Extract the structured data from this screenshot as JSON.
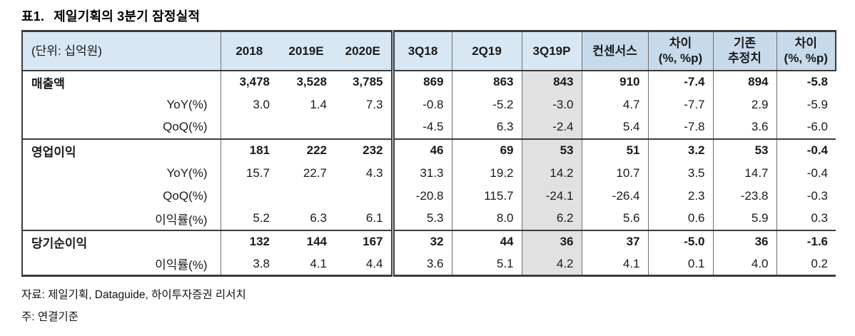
{
  "title": {
    "prefix": "표1.",
    "text": "제일기획의 3분기 잠정실적"
  },
  "table": {
    "unit_label": "(단위: 십억원)",
    "highlighted_column": "3Q19P",
    "columns": [
      {
        "id": "2018",
        "label": "2018"
      },
      {
        "id": "2019e",
        "label": "2019E"
      },
      {
        "id": "2020e",
        "label": "2020E"
      },
      {
        "id": "3q18",
        "label": "3Q18"
      },
      {
        "id": "2q19",
        "label": "2Q19"
      },
      {
        "id": "3q19p",
        "label": "3Q19P"
      },
      {
        "id": "consensus",
        "label": "컨센서스"
      },
      {
        "id": "diff-vs-consensus",
        "label": "차이\n(%, %p)"
      },
      {
        "id": "previous-estimate",
        "label": "기존\n추정치"
      },
      {
        "id": "diff-vs-previous",
        "label": "차이\n(%, %p)"
      }
    ],
    "rows": [
      {
        "label": "매출액",
        "style": "section",
        "separator": false,
        "values": [
          "3,478",
          "3,528",
          "3,785",
          "869",
          "863",
          "843",
          "910",
          "-7.4",
          "894",
          "-5.8"
        ]
      },
      {
        "label": "YoY(%)",
        "style": "sub",
        "separator": false,
        "values": [
          "3.0",
          "1.4",
          "7.3",
          "-0.8",
          "-5.2",
          "-3.0",
          "4.7",
          "-7.7",
          "2.9",
          "-5.9"
        ]
      },
      {
        "label": "QoQ(%)",
        "style": "sub",
        "separator": false,
        "values": [
          "",
          "",
          "",
          "-4.5",
          "6.3",
          "-2.4",
          "5.4",
          "-7.8",
          "3.6",
          "-6.0"
        ]
      },
      {
        "label": "영업이익",
        "style": "section",
        "separator": true,
        "values": [
          "181",
          "222",
          "232",
          "46",
          "69",
          "53",
          "51",
          "3.2",
          "53",
          "-0.4"
        ]
      },
      {
        "label": "YoY(%)",
        "style": "sub",
        "separator": false,
        "values": [
          "15.7",
          "22.7",
          "4.3",
          "31.3",
          "19.2",
          "14.2",
          "10.7",
          "3.5",
          "14.7",
          "-0.4"
        ]
      },
      {
        "label": "QoQ(%)",
        "style": "sub",
        "separator": false,
        "values": [
          "",
          "",
          "",
          "-20.8",
          "115.7",
          "-24.1",
          "-26.4",
          "2.3",
          "-23.8",
          "-0.3"
        ]
      },
      {
        "label": "이익률(%)",
        "style": "sub",
        "separator": false,
        "values": [
          "5.2",
          "6.3",
          "6.1",
          "5.3",
          "8.0",
          "6.2",
          "5.6",
          "0.6",
          "5.9",
          "0.3"
        ]
      },
      {
        "label": "당기순이익",
        "style": "section",
        "separator": true,
        "values": [
          "132",
          "144",
          "167",
          "32",
          "44",
          "36",
          "37",
          "-5.0",
          "36",
          "-1.6"
        ]
      },
      {
        "label": "이익률(%)",
        "style": "sub",
        "separator": false,
        "values": [
          "3.8",
          "4.1",
          "4.4",
          "3.6",
          "5.1",
          "4.2",
          "4.1",
          "0.1",
          "4.0",
          "0.2"
        ]
      }
    ]
  },
  "colors": {
    "header_light_blue": "#d7e7f4",
    "header_dark_blue": "#c7daeb",
    "highlight_gray": "#e1e1e1",
    "rule_dark": "#3c3c3c",
    "rule_mid": "#6e6e6e"
  },
  "footnotes": [
    "자료: 제일기획, Dataguide, 하이투자증권 리서치",
    "주: 연결기준"
  ]
}
